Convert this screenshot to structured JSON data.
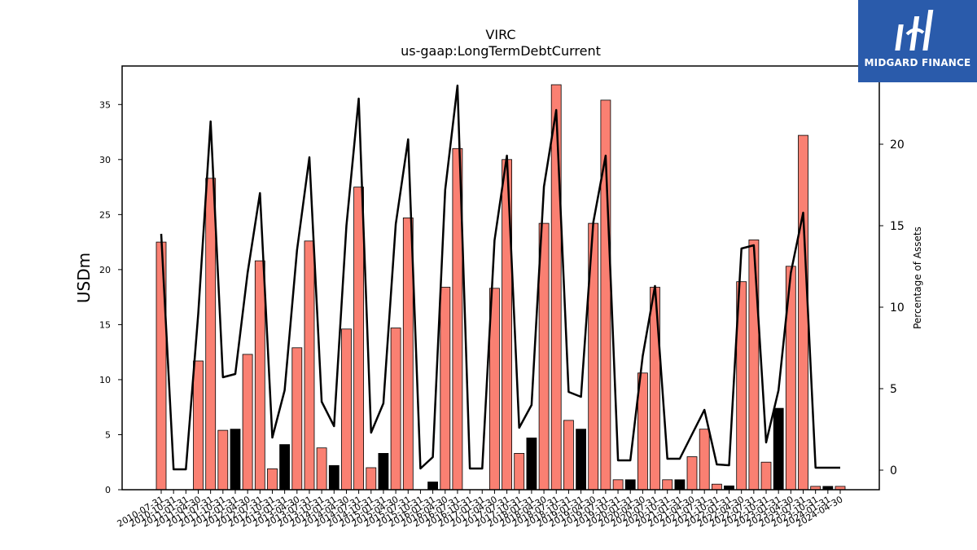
{
  "header": {
    "title": "VIRC",
    "subtitle": "us-gaap:LongTermDebtCurrent"
  },
  "logo": {
    "text": "MIDGARD FINANCE",
    "background": "#2a5bab"
  },
  "chart_data": {
    "type": "bar",
    "title": "VIRC",
    "subtitle": "us-gaap:LongTermDebtCurrent",
    "ylabel": "USDm",
    "y2label": "Percentage of Assets",
    "ylim": [
      0,
      38.5
    ],
    "y2lim": [
      -1.2,
      24.8
    ],
    "yticks": [
      0,
      5,
      10,
      15,
      20,
      25,
      30,
      35
    ],
    "y2ticks": [
      0,
      5,
      10,
      15,
      20
    ],
    "colors": {
      "positive_bar": "#fa8072",
      "negative_bar": "#000000",
      "line": "#000000"
    },
    "categories": [
      "2010-07-31",
      "2010-10-31",
      "2011-01-31",
      "2011-04-30",
      "2011-07-31",
      "2011-10-31",
      "2012-01-31",
      "2012-04-30",
      "2012-07-31",
      "2012-10-31",
      "2013-01-31",
      "2013-04-30",
      "2013-07-31",
      "2013-10-31",
      "2014-01-31",
      "2014-04-30",
      "2014-07-31",
      "2014-10-31",
      "2015-01-31",
      "2015-04-30",
      "2015-07-31",
      "2015-10-31",
      "2016-01-31",
      "2016-04-30",
      "2016-07-31",
      "2016-10-31",
      "2017-01-31",
      "2017-04-30",
      "2017-07-31",
      "2017-10-31",
      "2018-01-31",
      "2018-04-30",
      "2018-07-31",
      "2018-10-31",
      "2019-01-31",
      "2019-04-30",
      "2019-07-31",
      "2019-10-31",
      "2020-01-31",
      "2020-04-30",
      "2020-07-31",
      "2020-10-31",
      "2021-01-31",
      "2021-04-30",
      "2021-07-31",
      "2021-10-31",
      "2022-01-31",
      "2022-04-30",
      "2022-07-31",
      "2022-10-31",
      "2023-01-31",
      "2023-04-30",
      "2023-07-31",
      "2023-10-31",
      "2024-01-31",
      "2024-04-30"
    ],
    "series": [
      {
        "values": [
          22.5,
          0,
          0,
          11.7,
          28.3,
          5.4,
          5.5,
          12.3,
          20.8,
          1.9,
          4.1,
          12.9,
          22.6,
          3.8,
          2.2,
          14.6,
          27.5,
          2.0,
          3.3,
          14.7,
          24.7,
          0,
          0.7,
          18.4,
          31.0,
          0,
          0,
          18.3,
          30.0,
          3.3,
          4.7,
          24.2,
          36.8,
          6.3,
          5.5,
          24.2,
          35.4,
          0.9,
          0.9,
          10.6,
          18.4,
          0.9,
          0.9,
          3.0,
          5.5,
          0.5,
          0.35,
          18.9,
          22.7,
          2.5,
          7.4,
          20.3,
          32.2,
          0.3,
          0.3,
          0.3
        ],
        "sign": [
          "+",
          "+",
          "+",
          "+",
          "+",
          "+",
          "-",
          "+",
          "+",
          "+",
          "-",
          "+",
          "+",
          "+",
          "-",
          "+",
          "+",
          "+",
          "-",
          "+",
          "+",
          "+",
          "-",
          "+",
          "+",
          "+",
          "+",
          "+",
          "+",
          "+",
          "-",
          "+",
          "+",
          "+",
          "-",
          "+",
          "+",
          "+",
          "-",
          "+",
          "+",
          "+",
          "-",
          "+",
          "+",
          "+",
          "-",
          "+",
          "+",
          "+",
          "-",
          "+",
          "+",
          "+",
          "-",
          "+"
        ]
      },
      {
        "values": [
          14.5,
          0.05,
          0.05,
          9.6,
          21.4,
          5.7,
          5.9,
          12.1,
          17.0,
          2.0,
          4.9,
          13.5,
          19.2,
          4.2,
          2.7,
          15.0,
          22.8,
          2.3,
          4.1,
          15.1,
          20.3,
          0.1,
          0.8,
          17.2,
          23.6,
          0.1,
          0.1,
          14.1,
          19.3,
          2.6,
          4.0,
          17.4,
          22.1,
          4.8,
          4.5,
          15.2,
          19.3,
          0.6,
          0.6,
          7.0,
          11.3,
          0.7,
          0.7,
          2.2,
          3.7,
          0.35,
          0.3,
          13.6,
          13.8,
          1.7,
          4.9,
          12.1,
          15.8,
          0.15,
          0.15,
          0.15
        ]
      }
    ]
  }
}
